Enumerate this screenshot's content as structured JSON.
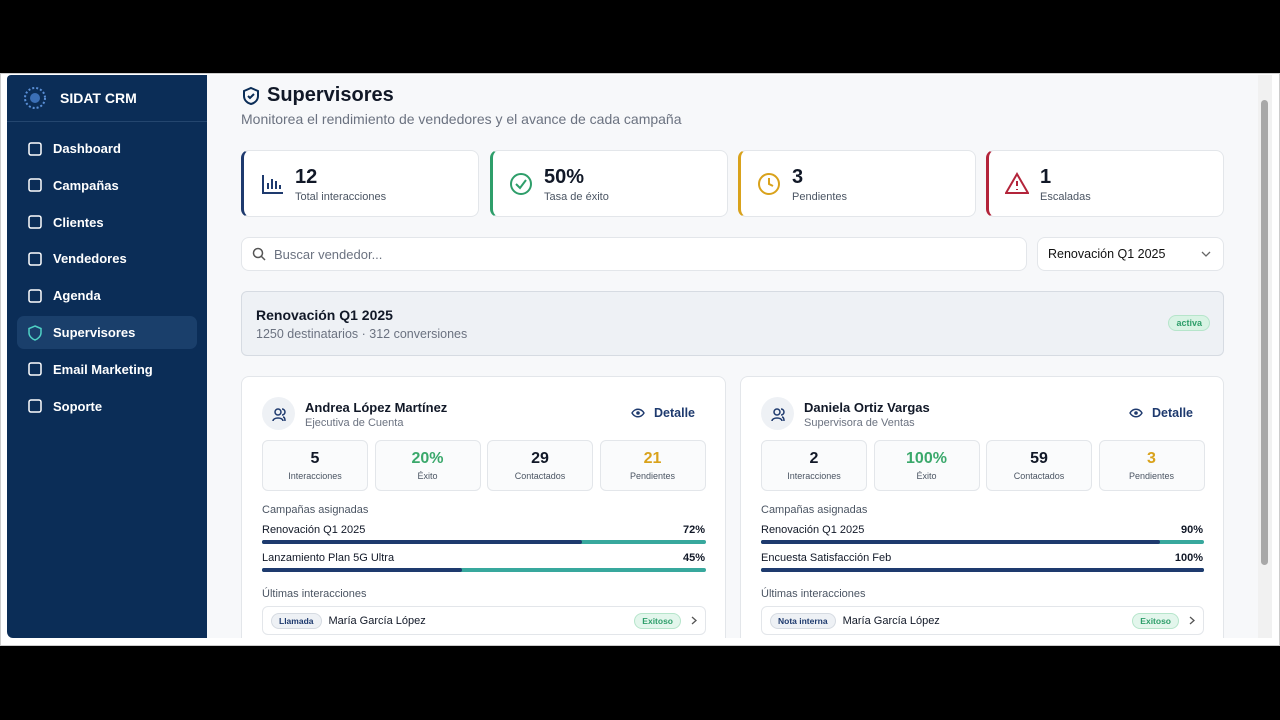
{
  "sidebar": {
    "brand": "SIDAT CRM",
    "nav": [
      "Dashboard",
      "Campañas",
      "Clientes",
      "Vendedores",
      "Agenda",
      "Supervisores",
      "Email Marketing",
      "Soporte"
    ]
  },
  "header": {
    "title": "Supervisores",
    "subtitle": "Monitorea el rendimiento de vendedores y el avance de cada campaña"
  },
  "stats": [
    {
      "value": "12",
      "label": "Total interacciones"
    },
    {
      "value": "50%",
      "label": "Tasa de éxito"
    },
    {
      "value": "3",
      "label": "Pendientes"
    },
    {
      "value": "1",
      "label": "Escaladas"
    }
  ],
  "search": {
    "placeholder": "Buscar vendedor..."
  },
  "filter": {
    "selected": "Renovación Q1 2025"
  },
  "campaign": {
    "name": "Renovación Q1 2025",
    "details": "1250 destinatarios · 312 conversiones",
    "status": "activa"
  },
  "supervisors": [
    {
      "name": "Andrea López Martínez",
      "role": "Ejecutiva de Cuenta",
      "action": "Detalle",
      "metrics": [
        {
          "value": "5",
          "label": "Interacciones"
        },
        {
          "value": "20%",
          "label": "Éxito"
        },
        {
          "value": "29",
          "label": "Contactados"
        },
        {
          "value": "21",
          "label": "Pendientes"
        }
      ],
      "campaigns_title": "Campañas asignadas",
      "campaigns": [
        {
          "name": "Renovación Q1 2025",
          "progress": 72,
          "progress_label": "72%"
        },
        {
          "name": "Lanzamiento Plan 5G Ultra",
          "progress": 45,
          "progress_label": "45%"
        }
      ],
      "interactions_title": "Últimas interacciones",
      "interactions": [
        {
          "type": "Llamada",
          "contact": "María García López",
          "result": "Exitoso"
        }
      ]
    },
    {
      "name": "Daniela Ortiz Vargas",
      "role": "Supervisora de Ventas",
      "action": "Detalle",
      "metrics": [
        {
          "value": "2",
          "label": "Interacciones"
        },
        {
          "value": "100%",
          "label": "Éxito"
        },
        {
          "value": "59",
          "label": "Contactados"
        },
        {
          "value": "3",
          "label": "Pendientes"
        }
      ],
      "campaigns_title": "Campañas asignadas",
      "campaigns": [
        {
          "name": "Renovación Q1 2025",
          "progress": 90,
          "progress_label": "90%"
        },
        {
          "name": "Encuesta Satisfacción Feb",
          "progress": 100,
          "progress_label": "100%"
        }
      ],
      "interactions_title": "Últimas interacciones",
      "interactions": [
        {
          "type": "Nota interna",
          "contact": "María García López",
          "result": "Exitoso"
        }
      ]
    }
  ]
}
